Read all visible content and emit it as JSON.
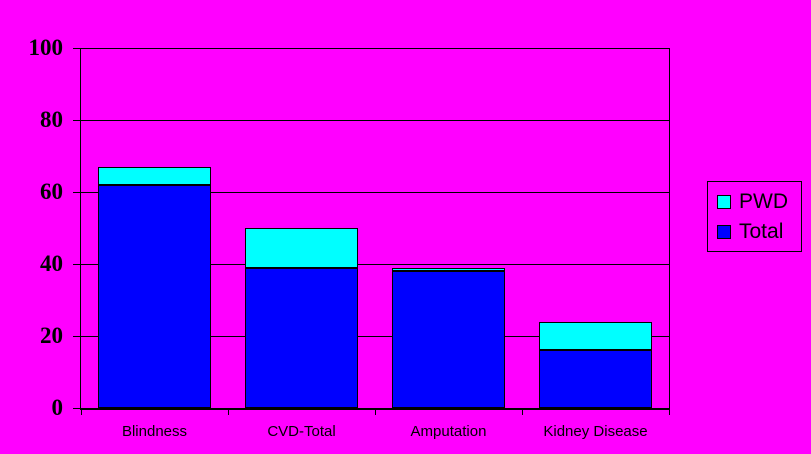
{
  "colors": {
    "background": "#FF00FF",
    "total_series": "#0000FF",
    "pwd_series": "#00FFFF",
    "axis": "#000000"
  },
  "chart_data": {
    "type": "bar",
    "stacked": true,
    "title": "",
    "xlabel": "",
    "ylabel": "",
    "categories": [
      "Blindness",
      "CVD-Total",
      "Amputation",
      "Kidney Disease"
    ],
    "series": [
      {
        "name": "Total",
        "color": "#0000FF",
        "values": [
          62,
          39,
          38,
          16
        ]
      },
      {
        "name": "PWD",
        "color": "#00FFFF",
        "values": [
          5,
          11,
          1,
          8
        ]
      }
    ],
    "stack_totals": [
      67,
      50,
      39,
      24
    ],
    "y_ticks": [
      0,
      20,
      40,
      60,
      80,
      100
    ],
    "ylim": [
      0,
      100
    ],
    "grid": true,
    "legend_position": "right",
    "plot_background": "#FF00FF"
  },
  "legend": {
    "items": [
      {
        "label": "PWD",
        "color": "#00FFFF"
      },
      {
        "label": "Total",
        "color": "#0000FF"
      }
    ]
  }
}
